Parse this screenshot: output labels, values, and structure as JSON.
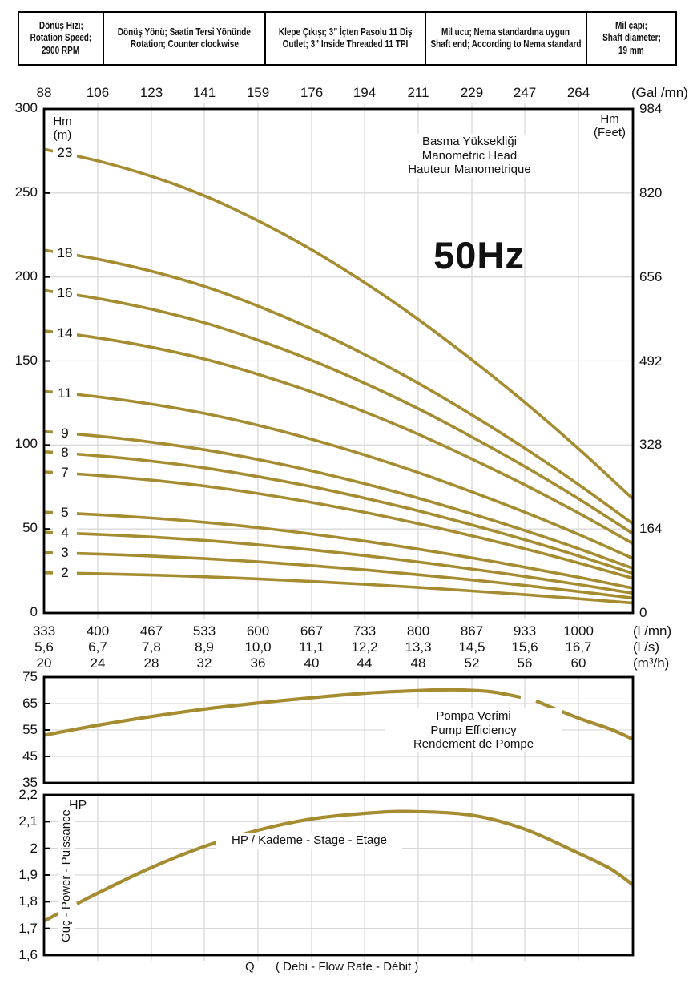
{
  "colors": {
    "curve_gold": "#a68c30",
    "grid_gray": "#d9d9d9",
    "border": "#000000",
    "text": "#111111"
  },
  "header": {
    "cells": [
      {
        "lines": [
          "Dönüş Hızı;",
          "Rotation Speed;",
          "2900 RPM"
        ]
      },
      {
        "lines": [
          "Dönüş Yönü; Saatin Tersi Yönünde",
          "Rotation; Counter clockwise"
        ]
      },
      {
        "lines": [
          "Klepe Çıkışı; 3” İçten Pasolu 11 Diş",
          "Outlet; 3” Inside Threaded 11 TPI"
        ]
      },
      {
        "lines": [
          "Mil ucu; Nema standardına uygun",
          "Shaft end; According to Nema standard"
        ]
      },
      {
        "lines": [
          "Mil çapı;",
          "Shaft diameter;",
          "19 mm"
        ]
      }
    ]
  },
  "chart_data": [
    {
      "id": "head",
      "type": "line",
      "title_lines": [
        "Basma Yüksekliği",
        "Manometric Head",
        "Hauteur Manometrique"
      ],
      "frequency_label": "50Hz",
      "x_ticks_q": [
        333,
        400,
        467,
        533,
        600,
        667,
        733,
        800,
        867,
        933,
        1000
      ],
      "x_axis_top": {
        "unit": "(Gal /mn)",
        "labels": [
          "88",
          "106",
          "123",
          "141",
          "159",
          "176",
          "194",
          "211",
          "229",
          "247",
          "264"
        ]
      },
      "x_axis_bottom_rows": [
        {
          "unit": "(l /mn)",
          "labels": [
            "333",
            "400",
            "467",
            "533",
            "600",
            "667",
            "733",
            "800",
            "867",
            "933",
            "1000"
          ]
        },
        {
          "unit": "(l /s)",
          "labels": [
            "5,6",
            "6,7",
            "7,8",
            "8,9",
            "10,0",
            "11,1",
            "12,2",
            "13,3",
            "14,5",
            "15,6",
            "16,7"
          ]
        },
        {
          "unit": "(m³/h)",
          "labels": [
            "20",
            "24",
            "28",
            "32",
            "36",
            "40",
            "44",
            "48",
            "52",
            "56",
            "60"
          ]
        }
      ],
      "y_axis_left": {
        "title_lines": [
          "Hm",
          "(m)"
        ],
        "ticks": [
          300,
          250,
          200,
          150,
          100,
          50,
          0
        ]
      },
      "y_axis_right": {
        "title_lines": [
          "Hm",
          "(Feet)"
        ],
        "ticks": [
          984,
          820,
          656,
          492,
          328,
          164,
          0
        ]
      },
      "xlim": [
        333,
        1068
      ],
      "ylim": [
        0,
        300
      ],
      "x": [
        333,
        400,
        467,
        533,
        600,
        667,
        733,
        800,
        867,
        933,
        1000,
        1068
      ],
      "series": [
        {
          "name": "2",
          "values": [
            24,
            23.4,
            22.6,
            21.6,
            20.3,
            18.8,
            17.1,
            15.2,
            13.1,
            10.9,
            8.5,
            5.9
          ]
        },
        {
          "name": "3",
          "values": [
            36,
            35.1,
            33.9,
            32.4,
            30.5,
            28.2,
            25.7,
            22.8,
            19.7,
            16.4,
            12.8,
            8.9
          ]
        },
        {
          "name": "4",
          "values": [
            48,
            46.8,
            45.2,
            43.2,
            40.6,
            37.6,
            34.2,
            30.4,
            26.2,
            21.8,
            17,
            11.8
          ]
        },
        {
          "name": "5",
          "values": [
            60,
            58.5,
            56.5,
            54,
            50.8,
            47,
            42.8,
            38,
            32.8,
            27.3,
            21.3,
            14.8
          ]
        },
        {
          "name": "7",
          "values": [
            84,
            81.9,
            79.1,
            75.6,
            71.1,
            65.8,
            59.9,
            53.2,
            45.9,
            38.2,
            29.8,
            20.7
          ]
        },
        {
          "name": "8",
          "values": [
            96,
            93.6,
            90.4,
            86.4,
            81.2,
            75.2,
            68.4,
            60.8,
            52.4,
            43.6,
            34,
            23.6
          ]
        },
        {
          "name": "9",
          "values": [
            108,
            105.3,
            101.7,
            97.2,
            91.4,
            84.6,
            77,
            68.4,
            59,
            49.1,
            38.3,
            26.6
          ]
        },
        {
          "name": "11",
          "values": [
            132,
            128.7,
            124.3,
            118.8,
            111.7,
            103.4,
            94.1,
            83.6,
            72.1,
            60,
            46.8,
            32.5
          ]
        },
        {
          "name": "14",
          "values": [
            168,
            163.8,
            158.2,
            151.2,
            142.1,
            131.6,
            119.7,
            106.4,
            91.7,
            76.3,
            59.5,
            41.3
          ]
        },
        {
          "name": "16",
          "values": [
            192,
            187.2,
            180.8,
            172.8,
            162.4,
            150.4,
            136.8,
            121.6,
            104.8,
            87.2,
            68,
            47.2
          ]
        },
        {
          "name": "18",
          "values": [
            216,
            210.6,
            203.4,
            194.4,
            182.7,
            169.2,
            153.9,
            136.8,
            117.9,
            98.1,
            76.5,
            53.1
          ]
        },
        {
          "name": "23",
          "values": [
            276,
            269.1,
            259.9,
            248.4,
            233.5,
            216.2,
            196.7,
            174.8,
            150.7,
            125.4,
            97.8,
            67.9
          ]
        }
      ]
    },
    {
      "id": "efficiency",
      "type": "line",
      "annotation_lines": [
        "Pompa Verimi",
        "Pump Efficiency",
        "Rendement de Pompe"
      ],
      "ylim": [
        35,
        75
      ],
      "yticks": [
        75,
        65,
        55,
        45,
        35
      ],
      "segments": [
        [
          [
            333,
            53
          ],
          [
            400,
            56.8
          ],
          [
            467,
            60.1
          ],
          [
            533,
            62.9
          ],
          [
            600,
            65.2
          ],
          [
            667,
            67.2
          ],
          [
            733,
            68.9
          ],
          [
            800,
            69.9
          ],
          [
            845,
            70.2
          ],
          [
            890,
            69.5
          ],
          [
            928,
            67.4
          ]
        ],
        [
          [
            947,
            66.0
          ],
          [
            1000,
            59.5
          ],
          [
            1040,
            55.3
          ],
          [
            1068,
            51.5
          ]
        ]
      ]
    },
    {
      "id": "power",
      "type": "line",
      "corner_label": "HP",
      "ylabel": "Güç - Power - Puissance",
      "annotation": "HP / Kademe - Stage - Etage",
      "xlabel_prefix": "Q",
      "xlabel": "( Debi - Flow Rate - Débit )",
      "ylim": [
        1.6,
        2.2
      ],
      "yticks": [
        {
          "label": "2,2",
          "value": 2.2
        },
        {
          "label": "2,1",
          "value": 2.1
        },
        {
          "label": "2",
          "value": 2.0
        },
        {
          "label": "1,9",
          "value": 1.9
        },
        {
          "label": "1,8",
          "value": 1.8
        },
        {
          "label": "1,7",
          "value": 1.7
        },
        {
          "label": "1,6",
          "value": 1.6
        }
      ],
      "segments": [
        [
          [
            333,
            1.727
          ],
          [
            352,
            1.758
          ]
        ],
        [
          [
            374,
            1.792
          ],
          [
            400,
            1.832
          ],
          [
            467,
            1.928
          ],
          [
            533,
            2.007
          ],
          [
            600,
            2.068
          ],
          [
            667,
            2.11
          ],
          [
            733,
            2.131
          ],
          [
            790,
            2.138
          ],
          [
            867,
            2.124
          ],
          [
            933,
            2.072
          ],
          [
            1000,
            1.982
          ],
          [
            1040,
            1.923
          ],
          [
            1068,
            1.863
          ]
        ]
      ]
    }
  ]
}
